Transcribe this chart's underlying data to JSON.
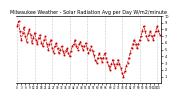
{
  "title": "Milwaukee Weather - Solar Radiation Avg per Day W/m2/minute",
  "line_color": "#cc0000",
  "bg_color": "#ffffff",
  "plot_bg": "#ffffff",
  "grid_color": "#999999",
  "ylim": [
    0,
    10
  ],
  "ytick_labels": [
    "10",
    "9",
    "8",
    "7",
    "6",
    "5",
    "4",
    "3",
    "2",
    "1"
  ],
  "yticks": [
    10,
    9,
    8,
    7,
    6,
    5,
    4,
    3,
    2,
    1
  ],
  "y_values": [
    8.5,
    9.2,
    7.8,
    6.5,
    7.4,
    8.3,
    7.0,
    6.2,
    7.5,
    8.0,
    7.2,
    6.0,
    6.8,
    7.5,
    6.5,
    5.8,
    6.8,
    7.2,
    6.0,
    5.5,
    6.5,
    7.0,
    5.8,
    5.0,
    5.8,
    6.5,
    5.2,
    4.5,
    5.5,
    6.0,
    5.2,
    4.5,
    5.0,
    5.5,
    4.8,
    4.2,
    4.8,
    5.2,
    4.5,
    4.0,
    4.8,
    5.5,
    5.8,
    6.5,
    5.5,
    5.0,
    5.8,
    6.2,
    5.5,
    5.0,
    5.5,
    6.0,
    5.2,
    4.5,
    5.0,
    5.5,
    4.8,
    4.2,
    3.5,
    3.0,
    3.8,
    4.5,
    3.8,
    3.2,
    3.8,
    4.5,
    3.8,
    3.2,
    2.5,
    2.0,
    2.8,
    3.5,
    2.8,
    2.2,
    2.8,
    3.5,
    2.8,
    2.2,
    1.5,
    1.0,
    1.8,
    2.5,
    3.0,
    3.8,
    4.5,
    5.2,
    5.8,
    6.5,
    5.8,
    5.2,
    5.8,
    6.5,
    7.0,
    7.8,
    8.5,
    7.8,
    7.0,
    6.5,
    7.2,
    7.8,
    7.0,
    6.5,
    7.2,
    7.8,
    8.5,
    7.8,
    7.2
  ],
  "n_grid_lines": 8,
  "title_fontsize": 3.5,
  "tick_fontsize": 2.5
}
